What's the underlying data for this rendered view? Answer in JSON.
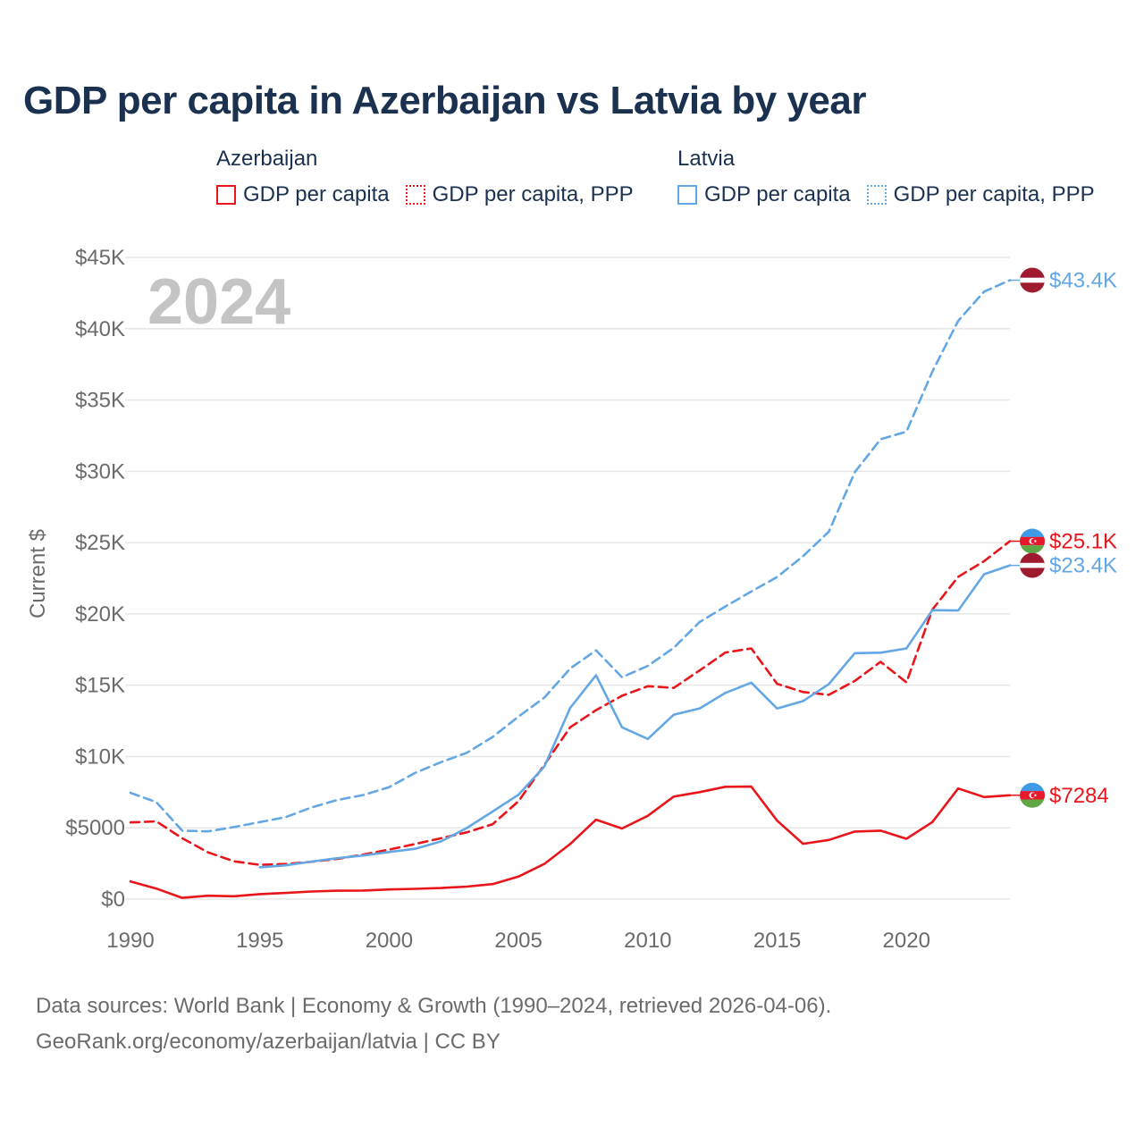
{
  "chart_data": {
    "type": "line",
    "title": "GDP per capita in Azerbaijan vs Latvia by year",
    "ylabel": "Current $",
    "xlabel": "",
    "year_watermark": "2024",
    "x": [
      1990,
      1991,
      1992,
      1993,
      1994,
      1995,
      1996,
      1997,
      1998,
      1999,
      2000,
      2001,
      2002,
      2003,
      2004,
      2005,
      2006,
      2007,
      2008,
      2009,
      2010,
      2011,
      2012,
      2013,
      2014,
      2015,
      2016,
      2017,
      2018,
      2019,
      2020,
      2021,
      2022,
      2023,
      2024
    ],
    "xlim": [
      1990,
      2024
    ],
    "ylim": [
      0,
      45000
    ],
    "x_ticks": [
      1990,
      1995,
      2000,
      2005,
      2010,
      2015,
      2020
    ],
    "x_tick_labels": [
      "1990",
      "1995",
      "2000",
      "2005",
      "2010",
      "2015",
      "2020"
    ],
    "y_ticks": [
      0,
      5000,
      10000,
      15000,
      20000,
      25000,
      30000,
      35000,
      40000,
      45000
    ],
    "y_tick_labels": [
      "$0",
      "$5000",
      "$10K",
      "$15K",
      "$20K",
      "$25K",
      "$30K",
      "$35K",
      "$40K",
      "$45K"
    ],
    "grid": true,
    "legend_groups": [
      {
        "country": "Azerbaijan",
        "items": [
          "GDP per capita",
          "GDP per capita, PPP"
        ],
        "color": "#e8161b"
      },
      {
        "country": "Latvia",
        "items": [
          "GDP per capita",
          "GDP per capita, PPP"
        ],
        "color": "#63a7e4"
      }
    ],
    "series": [
      {
        "name": "Azerbaijan GDP per capita",
        "country": "Azerbaijan",
        "style": "solid",
        "color": "#e8161b",
        "values": [
          1240,
          740,
          90,
          240,
          200,
          350,
          430,
          530,
          590,
          600,
          680,
          720,
          780,
          880,
          1050,
          1580,
          2470,
          3870,
          5570,
          4950,
          5840,
          7190,
          7500,
          7880,
          7890,
          5500,
          3880,
          4150,
          4740,
          4800,
          4230,
          5400,
          7760,
          7160,
          7284
        ],
        "end_label": "$7284"
      },
      {
        "name": "Azerbaijan GDP per capita, PPP",
        "country": "Azerbaijan",
        "style": "dashed",
        "color": "#e8161b",
        "values": [
          5380,
          5450,
          4270,
          3280,
          2650,
          2400,
          2460,
          2620,
          2820,
          3120,
          3470,
          3870,
          4270,
          4680,
          5250,
          6860,
          9420,
          12050,
          13250,
          14260,
          14930,
          14810,
          16030,
          17290,
          17580,
          15100,
          14520,
          14330,
          15300,
          16640,
          15200,
          20300,
          22600,
          23700,
          25100
        ],
        "end_label": "$25.1K"
      },
      {
        "name": "Latvia GDP per capita",
        "country": "Latvia",
        "style": "solid",
        "color": "#63a7e4",
        "values": [
          null,
          null,
          null,
          null,
          null,
          2230,
          2370,
          2630,
          2870,
          3060,
          3300,
          3530,
          4040,
          4980,
          6140,
          7320,
          9300,
          13410,
          15700,
          12050,
          11230,
          12930,
          13370,
          14460,
          15180,
          13360,
          13890,
          15080,
          17250,
          17280,
          17580,
          20260,
          20240,
          22780,
          23400
        ],
        "end_label": "$23.4K"
      },
      {
        "name": "Latvia GDP per capita, PPP",
        "country": "Latvia",
        "style": "dashed",
        "color": "#63a7e4",
        "values": [
          7450,
          6800,
          4800,
          4750,
          5050,
          5400,
          5750,
          6430,
          6950,
          7300,
          7850,
          8850,
          9600,
          10260,
          11370,
          12800,
          14130,
          16170,
          17450,
          15560,
          16350,
          17620,
          19430,
          20520,
          21570,
          22590,
          24050,
          25770,
          29940,
          32250,
          32780,
          36990,
          40550,
          42600,
          43400
        ],
        "end_label": "$43.4K"
      }
    ]
  },
  "footer": {
    "line1": "Data sources: World Bank | Economy & Growth (1990–2024, retrieved 2026-04-06).",
    "line2": "GeoRank.org/economy/azerbaijan/latvia | CC BY"
  }
}
